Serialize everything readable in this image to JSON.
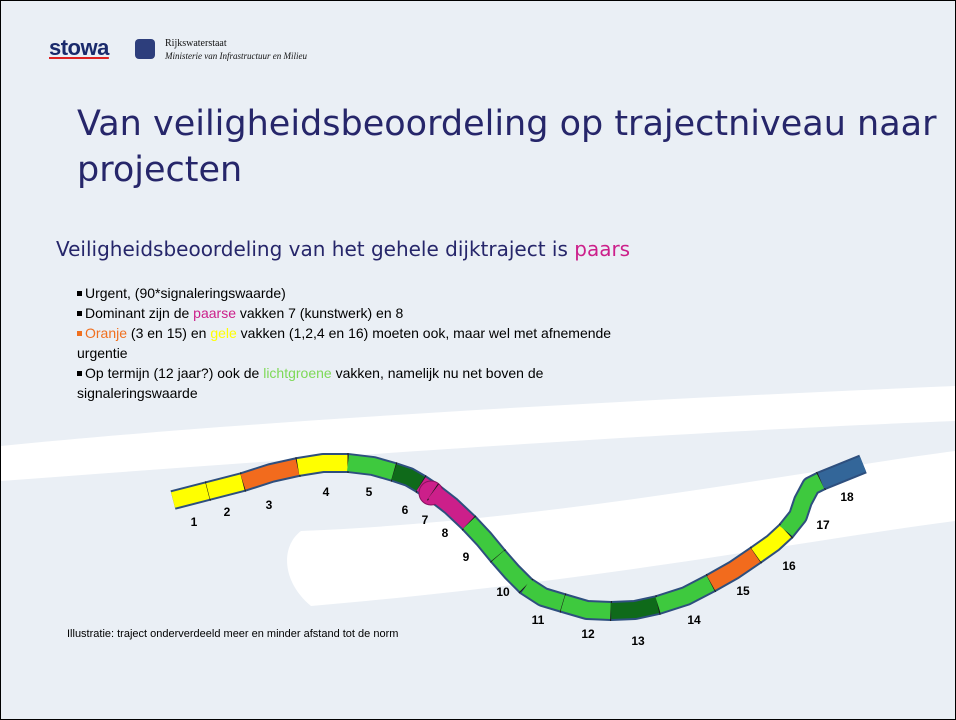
{
  "header": {
    "logo": "stowa",
    "org": "Rijkswaterstaat",
    "ministry": "Ministerie van Infrastructuur en Milieu"
  },
  "title": "Van veiligheidsbeoordeling op trajectniveau naar projecten",
  "subtitle": [
    {
      "text": "Veiligheidsbeoordeling van het gehele dijktraject is "
    },
    {
      "text": "paars",
      "color": "#cc1f8a"
    }
  ],
  "bullets": [
    [
      {
        "text": "Urgent, (90*signaleringswaarde)"
      }
    ],
    [
      {
        "text": "Dominant zijn de "
      },
      {
        "text": "paarse",
        "color": "#cc1f8a"
      },
      {
        "text": " vakken 7 (kunstwerk) en 8"
      }
    ],
    [
      {
        "text": "Oranje",
        "color": "#f07020"
      },
      {
        "text": " (3 en 15) en "
      },
      {
        "text": "gele",
        "color": "#ffff00"
      },
      {
        "text": " vakken (1,2,4 en 16) moeten ook, maar wel met afnemende urgentie"
      }
    ],
    [
      {
        "text": "Op termijn (12 jaar?) ook de "
      },
      {
        "text": "lichtgroene",
        "color": "#7ed957"
      },
      {
        "text": " vakken, namelijk nu net boven de signaleringswaarde"
      }
    ]
  ],
  "segments": [
    {
      "label": "1",
      "color": "#ffff00"
    },
    {
      "label": "2",
      "color": "#ffff00"
    },
    {
      "label": "3",
      "color": "#f26b1d"
    },
    {
      "label": "4",
      "color": "#ffff00"
    },
    {
      "label": "5",
      "color": "#3ec93e"
    },
    {
      "label": "6",
      "color": "#0f6a1a"
    },
    {
      "label": "7",
      "color": "#cc1f8a"
    },
    {
      "label": "8",
      "color": "#cc1f8a"
    },
    {
      "label": "9",
      "color": "#3ec93e"
    },
    {
      "label": "10",
      "color": "#3ec93e"
    },
    {
      "label": "11",
      "color": "#3ec93e"
    },
    {
      "label": "12",
      "color": "#3ec93e"
    },
    {
      "label": "13",
      "color": "#0f6a1a"
    },
    {
      "label": "14",
      "color": "#3ec93e"
    },
    {
      "label": "15",
      "color": "#f26b1d"
    },
    {
      "label": "16",
      "color": "#ffff00"
    },
    {
      "label": "17",
      "color": "#3ec93e"
    },
    {
      "label": "18",
      "color": "#336699"
    }
  ],
  "caption": "Illustratie: traject onderverdeeld meer en minder afstand tot de norm"
}
